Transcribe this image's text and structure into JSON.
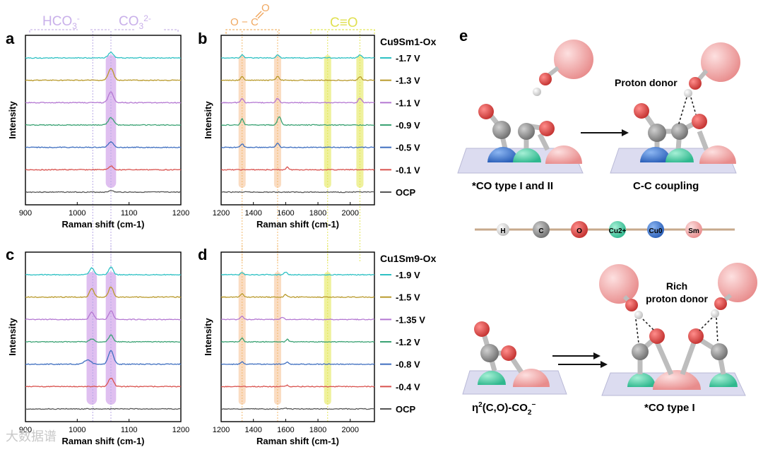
{
  "panels": {
    "a": {
      "letter": "a"
    },
    "b": {
      "letter": "b"
    },
    "c": {
      "letter": "c"
    },
    "d": {
      "letter": "d"
    },
    "e": {
      "letter": "e"
    }
  },
  "header_labels": {
    "hco3": "HCO3-",
    "co3": "CO32-",
    "carboxylate": "O-C=O",
    "co_triple": "C≡O"
  },
  "chart_data": [
    {
      "id": "a",
      "type": "line",
      "xlabel": "Raman shift (cm-1)",
      "ylabel": "Intensity",
      "xlim": [
        900,
        1200
      ],
      "xticks": [
        900,
        1000,
        1100,
        1200
      ],
      "highlights": [
        {
          "center": 1065,
          "width": 10,
          "color": "#c48be3"
        }
      ],
      "guides": [
        {
          "x": 1030,
          "color": "#b8a9e6"
        },
        {
          "x": 1065,
          "color": "#b8a9e6"
        }
      ],
      "series": [
        {
          "name": "OCP",
          "color": "#555555",
          "peaks": [
            [
              1065,
              0.15,
              5
            ]
          ]
        },
        {
          "name": "-0.1 V",
          "color": "#d9534f",
          "peaks": [
            [
              1065,
              0.3,
              6
            ]
          ]
        },
        {
          "name": "-0.5 V",
          "color": "#3f6fc0",
          "peaks": [
            [
              1065,
              0.45,
              7
            ]
          ]
        },
        {
          "name": "-0.9 V",
          "color": "#3aa273",
          "peaks": [
            [
              1065,
              0.6,
              7
            ]
          ]
        },
        {
          "name": "-1.1 V",
          "color": "#b478d2",
          "peaks": [
            [
              1065,
              0.85,
              7
            ]
          ]
        },
        {
          "name": "-1.3 V",
          "color": "#b99a2b",
          "peaks": [
            [
              1065,
              0.95,
              7
            ]
          ]
        },
        {
          "name": "-1.7 V",
          "color": "#2ec1c4",
          "peaks": [
            [
              1065,
              0.45,
              7
            ]
          ]
        }
      ]
    },
    {
      "id": "b",
      "type": "line",
      "xlabel": "Raman shift (cm-1)",
      "ylabel": "Intensity",
      "xlim": [
        1200,
        2150
      ],
      "xticks": [
        1200,
        1400,
        1600,
        1800,
        2000
      ],
      "highlights": [
        {
          "center": 1330,
          "width": 22,
          "color": "#f6c08f"
        },
        {
          "center": 1550,
          "width": 22,
          "color": "#f6c08f"
        },
        {
          "center": 1860,
          "width": 22,
          "color": "#e1e64a"
        },
        {
          "center": 2060,
          "width": 22,
          "color": "#e1e64a"
        }
      ],
      "guides": [
        {
          "x": 1330,
          "color": "#f3b86c"
        },
        {
          "x": 1550,
          "color": "#f3b86c"
        },
        {
          "x": 1860,
          "color": "#e3e65a"
        },
        {
          "x": 2060,
          "color": "#e3e65a"
        }
      ],
      "legend_title": "Cu9Sm1-Ox",
      "series": [
        {
          "name": "OCP",
          "color": "#555555",
          "peaks": []
        },
        {
          "name": "-0.1 V",
          "color": "#d9534f",
          "peaks": [
            [
              1610,
              0.25,
              10
            ]
          ]
        },
        {
          "name": "-0.5 V",
          "color": "#3f6fc0",
          "peaks": [
            [
              1330,
              0.3,
              12
            ],
            [
              1550,
              0.35,
              14
            ]
          ]
        },
        {
          "name": "-0.9 V",
          "color": "#3aa273",
          "peaks": [
            [
              1330,
              0.5,
              12
            ],
            [
              1560,
              0.65,
              16
            ]
          ]
        },
        {
          "name": "-1.1 V",
          "color": "#b478d2",
          "peaks": [
            [
              1330,
              0.35,
              12
            ],
            [
              1550,
              0.35,
              14
            ],
            [
              2060,
              0.35,
              14
            ]
          ]
        },
        {
          "name": "-1.3 V",
          "color": "#b99a2b",
          "peaks": [
            [
              1330,
              0.3,
              12
            ],
            [
              1550,
              0.3,
              14
            ],
            [
              2060,
              0.3,
              14
            ]
          ]
        },
        {
          "name": "-1.7 V",
          "color": "#2ec1c4",
          "peaks": [
            [
              1330,
              0.25,
              12
            ],
            [
              1550,
              0.25,
              14
            ],
            [
              2060,
              0.25,
              14
            ]
          ]
        }
      ]
    },
    {
      "id": "c",
      "type": "line",
      "xlabel": "Raman shift (cm-1)",
      "ylabel": "Intensity",
      "xlim": [
        900,
        1200
      ],
      "xticks": [
        900,
        1000,
        1100,
        1200
      ],
      "highlights": [
        {
          "center": 1028,
          "width": 10,
          "color": "#c48be3"
        },
        {
          "center": 1065,
          "width": 10,
          "color": "#c48be3"
        }
      ],
      "guides": [
        {
          "x": 1030,
          "color": "#b8a9e6"
        },
        {
          "x": 1065,
          "color": "#b8a9e6"
        }
      ],
      "series": [
        {
          "name": "OCP",
          "color": "#555555",
          "peaks": []
        },
        {
          "name": "-0.4 V",
          "color": "#d9534f",
          "peaks": [
            [
              1065,
              0.7,
              7
            ]
          ]
        },
        {
          "name": "-0.8 V",
          "color": "#3f6fc0",
          "peaks": [
            [
              1020,
              0.35,
              9
            ],
            [
              1065,
              1.1,
              7
            ]
          ]
        },
        {
          "name": "-1.2 V",
          "color": "#3aa273",
          "peaks": [
            [
              1028,
              0.25,
              6
            ],
            [
              1065,
              0.55,
              6
            ]
          ]
        },
        {
          "name": "-1.35 V",
          "color": "#b478d2",
          "peaks": [
            [
              1028,
              0.6,
              6
            ],
            [
              1065,
              0.7,
              6
            ]
          ]
        },
        {
          "name": "-1.5 V",
          "color": "#b99a2b",
          "peaks": [
            [
              1028,
              0.7,
              6
            ],
            [
              1065,
              0.85,
              6
            ]
          ]
        },
        {
          "name": "-1.9 V",
          "color": "#2ec1c4",
          "peaks": [
            [
              1028,
              0.55,
              6
            ],
            [
              1065,
              0.65,
              6
            ]
          ]
        }
      ]
    },
    {
      "id": "d",
      "type": "line",
      "xlabel": "Raman shift (cm-1)",
      "ylabel": "Intensity",
      "xlim": [
        1200,
        2150
      ],
      "xticks": [
        1200,
        1400,
        1600,
        1800,
        2000
      ],
      "highlights": [
        {
          "center": 1330,
          "width": 22,
          "color": "#f6c08f"
        },
        {
          "center": 1550,
          "width": 22,
          "color": "#f6c08f"
        },
        {
          "center": 1860,
          "width": 22,
          "color": "#e1e64a"
        }
      ],
      "guides": [
        {
          "x": 1330,
          "color": "#f3b86c"
        },
        {
          "x": 1550,
          "color": "#f3b86c"
        },
        {
          "x": 1860,
          "color": "#e3e65a"
        }
      ],
      "legend_title": "Cu1Sm9-Ox",
      "series": [
        {
          "name": "OCP",
          "color": "#555555",
          "peaks": [
            [
              1600,
              0.08,
              10
            ]
          ]
        },
        {
          "name": "-0.4 V",
          "color": "#d9534f",
          "peaks": [
            [
              1610,
              0.1,
              10
            ]
          ]
        },
        {
          "name": "-0.8 V",
          "color": "#3f6fc0",
          "peaks": [
            [
              1330,
              0.2,
              12
            ],
            [
              1610,
              0.2,
              12
            ]
          ]
        },
        {
          "name": "-1.2 V",
          "color": "#3aa273",
          "peaks": [
            [
              1330,
              0.3,
              12
            ],
            [
              1610,
              0.2,
              12
            ]
          ]
        },
        {
          "name": "-1.35 V",
          "color": "#b478d2",
          "peaks": [
            [
              1330,
              0.3,
              12
            ],
            [
              1580,
              0.2,
              14
            ]
          ]
        },
        {
          "name": "-1.5 V",
          "color": "#b99a2b",
          "peaks": [
            [
              1330,
              0.3,
              12
            ],
            [
              1600,
              0.2,
              14
            ]
          ]
        },
        {
          "name": "-1.9 V",
          "color": "#2ec1c4",
          "peaks": [
            [
              1330,
              0.2,
              12
            ],
            [
              1600,
              0.2,
              14
            ]
          ]
        }
      ]
    }
  ],
  "scheme": {
    "top_left_caption": "*CO type I and II",
    "top_right_caption": "C-C coupling",
    "proton_donor": "Proton donor",
    "rich_line1": "Rich",
    "rich_line2": "proton donor",
    "bottom_left_caption": "η2(C,O)-CO2−",
    "bottom_right_caption": "*CO type I",
    "legend": [
      {
        "label": "H",
        "color": "#e6e6e6"
      },
      {
        "label": "C",
        "color": "#9a9a9a"
      },
      {
        "label": "O",
        "color": "#e8504e"
      },
      {
        "label": "Cu2+",
        "color": "#5fd6b0"
      },
      {
        "label": "Cu0",
        "color": "#4a86d8"
      },
      {
        "label": "Sm",
        "color": "#f2a6a6"
      }
    ],
    "colors": {
      "surface": "#dcdcf0",
      "surface_edge": "#b9b9d6",
      "bond": "#bdbdbd",
      "arrow": "#111111"
    }
  },
  "watermark": "大数据谱"
}
